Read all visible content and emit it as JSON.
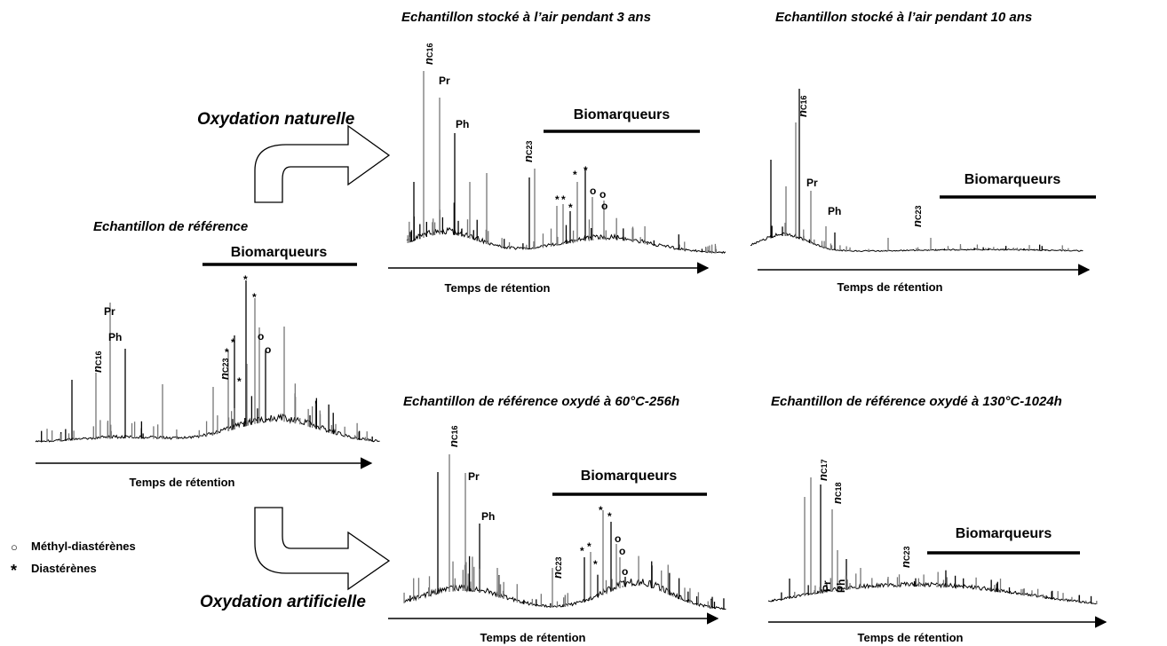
{
  "panels": {
    "reference": {
      "title": "Echantillon de référence",
      "biomarkers": "Biomarqueurs",
      "axis": "Temps de rétention",
      "pr": "Pr",
      "ph": "Ph",
      "nc16": "n",
      "nc16_sub": "C16",
      "nc23": "n",
      "nc23_sub": "C23"
    },
    "air3": {
      "title": "Echantillon stocké à l’air pendant 3 ans",
      "biomarkers": "Biomarqueurs",
      "axis": "Temps de rétention",
      "pr": "Pr",
      "ph": "Ph",
      "nc16": "n",
      "nc16_sub": "C16",
      "nc23": "n",
      "nc23_sub": "C23"
    },
    "air10": {
      "title": "Echantillon stocké à l’air pendant 10 ans",
      "biomarkers": "Biomarqueurs",
      "axis": "Temps de rétention",
      "pr": "Pr",
      "ph": "Ph",
      "nc16": "n",
      "nc16_sub": "C16",
      "nc23": "n",
      "nc23_sub": "C23"
    },
    "ox60": {
      "title": "Echantillon de référence oxydé à 60°C-256h",
      "biomarkers": "Biomarqueurs",
      "axis": "Temps de rétention",
      "pr": "Pr",
      "ph": "Ph",
      "nc16": "n",
      "nc16_sub": "C16",
      "nc23": "n",
      "nc23_sub": "C23"
    },
    "ox130": {
      "title": "Echantillon de référence oxydé à 130°C-1024h",
      "biomarkers": "Biomarqueurs",
      "axis": "Temps de rétention",
      "pr": "Pr",
      "ph": "Ph",
      "nc17": "n",
      "nc17_sub": "C17",
      "nc18": "n",
      "nc18_sub": "C18",
      "nc23": "n",
      "nc23_sub": "C23"
    }
  },
  "arrows": {
    "natural": "Oxydation naturelle",
    "artificial": "Oxydation artificielle"
  },
  "legend": {
    "circle_symbol": "○",
    "circle_label": "Méthyl-diastérènes",
    "star_symbol": "*",
    "star_label": "Diastérènes"
  },
  "markers": {
    "star": "*",
    "circle": "o"
  }
}
